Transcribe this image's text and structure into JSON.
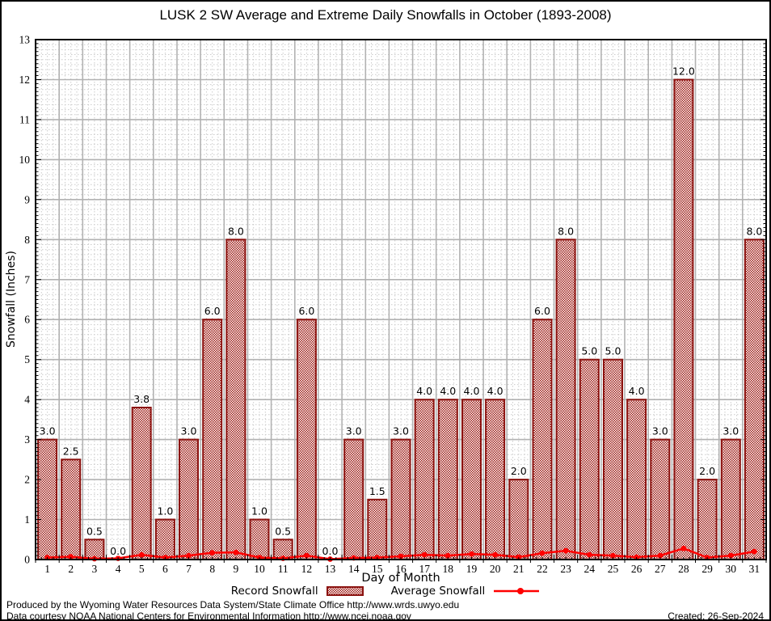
{
  "title": "LUSK 2 SW Average and Extreme Daily Snowfalls in October (1893-2008)",
  "legend": {
    "record_label": "Record Snowfall",
    "average_label": "Average Snowfall"
  },
  "footer": {
    "line1": "Produced by the Wyoming Water Resources Data System/State Climate Office http://www.wrds.uwyo.edu",
    "line2": "Data courtesy NOAA National Centers for Environmental Information http://www.ncei.noaa.gov",
    "created": "Created: 26-Sep-2024"
  },
  "colors": {
    "bar_stroke": "#8b120f",
    "bar_hatch": "#9e1b15",
    "average_line": "#ff0000",
    "grid_major": "#b2b2b2",
    "grid_minor": "#cccccc",
    "axis": "#000000"
  },
  "chart_data": {
    "type": "bar",
    "title": "LUSK 2 SW Average and Extreme Daily Snowfalls in October (1893-2008)",
    "xlabel": "Day of Month",
    "ylabel": "Snowfall (Inches)",
    "ylim": [
      0,
      13
    ],
    "ytick_step": 1,
    "grid": true,
    "legend_position": "bottom",
    "categories": [
      1,
      2,
      3,
      4,
      5,
      6,
      7,
      8,
      9,
      10,
      11,
      12,
      13,
      14,
      15,
      16,
      17,
      18,
      19,
      20,
      21,
      22,
      23,
      24,
      25,
      26,
      27,
      28,
      29,
      30,
      31
    ],
    "series": [
      {
        "name": "Record Snowfall",
        "type": "bar",
        "color": "#9e1b15",
        "values": [
          3.0,
          2.5,
          0.5,
          0.0,
          3.8,
          1.0,
          3.0,
          6.0,
          8.0,
          1.0,
          0.5,
          6.0,
          0.0,
          3.0,
          1.5,
          3.0,
          4.0,
          4.0,
          4.0,
          4.0,
          2.0,
          6.0,
          8.0,
          5.0,
          5.0,
          4.0,
          3.0,
          12.0,
          2.0,
          3.0,
          8.0
        ],
        "labels": [
          "3.0",
          "2.5",
          "0.5",
          "0.0",
          "3.8",
          "1.0",
          "3.0",
          "6.0",
          "8.0",
          "1.0",
          "0.5",
          "6.0",
          "0.0",
          "3.0",
          "1.5",
          "3.0",
          "4.0",
          "4.0",
          "4.0",
          "4.0",
          "2.0",
          "6.0",
          "8.0",
          "5.0",
          "5.0",
          "4.0",
          "3.0",
          "12.0",
          "2.0",
          "3.0",
          "8.0"
        ]
      },
      {
        "name": "Average Snowfall",
        "type": "line",
        "color": "#ff0000",
        "values": [
          0.05,
          0.07,
          0.02,
          0.03,
          0.12,
          0.05,
          0.1,
          0.17,
          0.18,
          0.05,
          0.03,
          0.1,
          0.01,
          0.04,
          0.05,
          0.08,
          0.12,
          0.1,
          0.14,
          0.12,
          0.06,
          0.16,
          0.22,
          0.12,
          0.1,
          0.06,
          0.1,
          0.28,
          0.05,
          0.1,
          0.2
        ]
      }
    ]
  }
}
